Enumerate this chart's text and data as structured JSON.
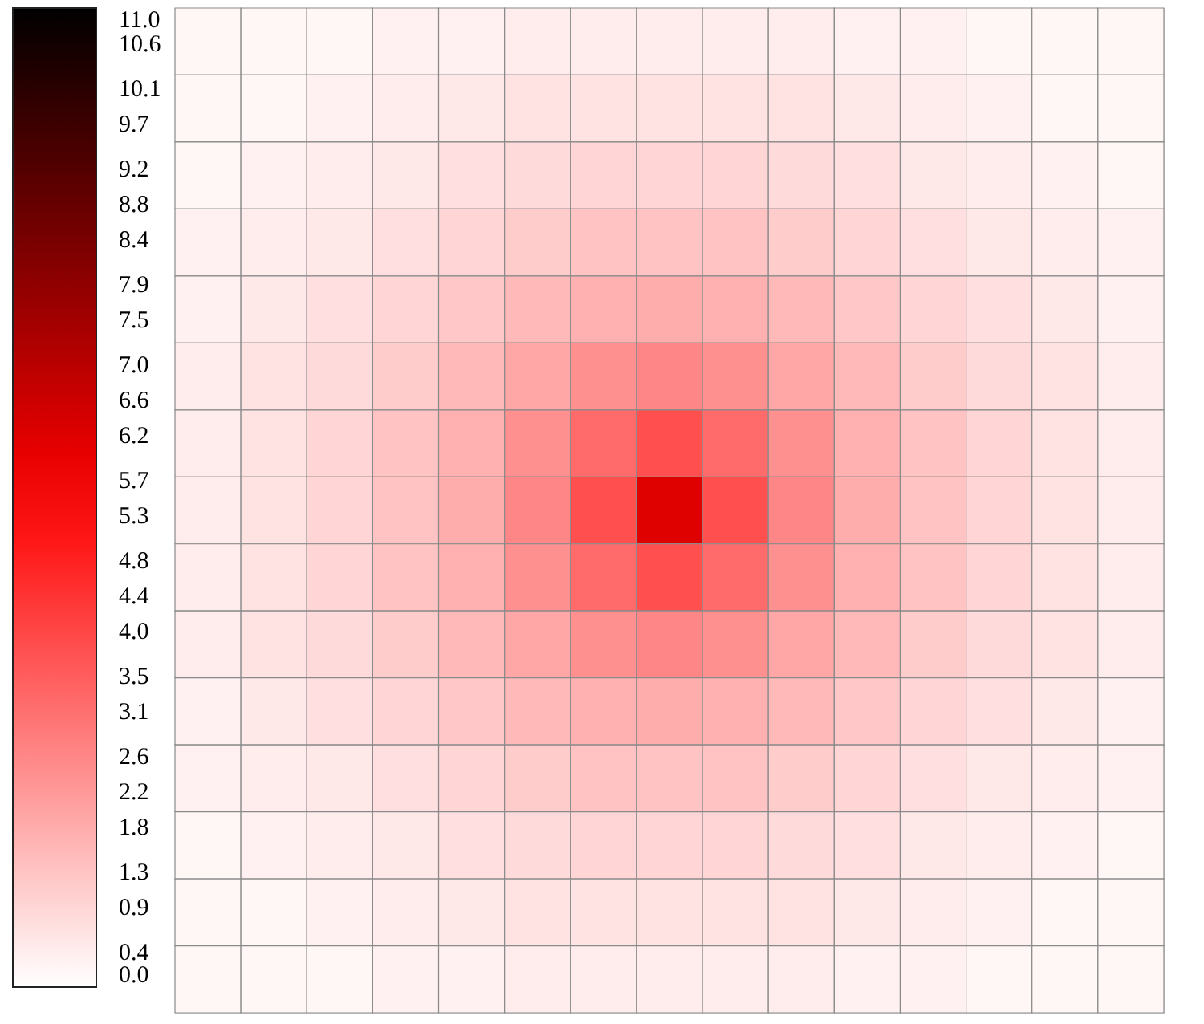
{
  "chart_data": {
    "type": "heatmap",
    "categories": [
      null,
      null,
      null,
      null,
      null,
      null,
      null,
      null,
      null,
      null,
      null,
      null,
      null,
      null,
      null
    ],
    "y_categories": [
      null,
      null,
      null,
      null,
      null,
      null,
      null,
      null,
      null,
      null,
      null,
      null,
      null,
      null,
      null
    ],
    "cells": [
      [
        0.2,
        0.2,
        0.2,
        0.3,
        0.3,
        0.4,
        0.4,
        0.4,
        0.4,
        0.4,
        0.3,
        0.3,
        0.2,
        0.2,
        0.2
      ],
      [
        0.2,
        0.2,
        0.3,
        0.4,
        0.5,
        0.6,
        0.6,
        0.6,
        0.6,
        0.6,
        0.5,
        0.4,
        0.3,
        0.2,
        0.2
      ],
      [
        0.2,
        0.3,
        0.4,
        0.5,
        0.7,
        0.8,
        0.9,
        0.9,
        0.9,
        0.8,
        0.7,
        0.5,
        0.4,
        0.3,
        0.2
      ],
      [
        0.3,
        0.4,
        0.5,
        0.7,
        0.9,
        1.1,
        1.3,
        1.3,
        1.3,
        1.1,
        0.9,
        0.7,
        0.5,
        0.4,
        0.3
      ],
      [
        0.3,
        0.5,
        0.7,
        0.9,
        1.2,
        1.5,
        1.7,
        1.8,
        1.7,
        1.5,
        1.2,
        0.9,
        0.7,
        0.5,
        0.3
      ],
      [
        0.4,
        0.6,
        0.8,
        1.1,
        1.5,
        1.9,
        2.4,
        2.6,
        2.4,
        1.9,
        1.5,
        1.1,
        0.8,
        0.6,
        0.4
      ],
      [
        0.4,
        0.6,
        0.9,
        1.3,
        1.7,
        2.4,
        3.2,
        3.8,
        3.2,
        2.4,
        1.7,
        1.3,
        0.9,
        0.6,
        0.4
      ],
      [
        0.4,
        0.6,
        0.9,
        1.3,
        1.8,
        2.6,
        3.8,
        6.2,
        3.8,
        2.6,
        1.8,
        1.3,
        0.9,
        0.6,
        0.4
      ],
      [
        0.4,
        0.6,
        0.9,
        1.3,
        1.7,
        2.4,
        3.2,
        3.8,
        3.2,
        2.4,
        1.7,
        1.3,
        0.9,
        0.6,
        0.4
      ],
      [
        0.4,
        0.6,
        0.8,
        1.1,
        1.5,
        1.9,
        2.4,
        2.6,
        2.4,
        1.9,
        1.5,
        1.1,
        0.8,
        0.6,
        0.4
      ],
      [
        0.3,
        0.5,
        0.7,
        0.9,
        1.2,
        1.5,
        1.7,
        1.8,
        1.7,
        1.5,
        1.2,
        0.9,
        0.7,
        0.5,
        0.3
      ],
      [
        0.3,
        0.4,
        0.5,
        0.7,
        0.9,
        1.1,
        1.3,
        1.3,
        1.3,
        1.1,
        0.9,
        0.7,
        0.5,
        0.4,
        0.3
      ],
      [
        0.2,
        0.3,
        0.4,
        0.5,
        0.7,
        0.8,
        0.9,
        0.9,
        0.9,
        0.8,
        0.7,
        0.5,
        0.4,
        0.3,
        0.2
      ],
      [
        0.2,
        0.2,
        0.3,
        0.4,
        0.5,
        0.6,
        0.6,
        0.6,
        0.6,
        0.6,
        0.5,
        0.4,
        0.3,
        0.2,
        0.2
      ],
      [
        0.2,
        0.2,
        0.2,
        0.3,
        0.3,
        0.4,
        0.4,
        0.4,
        0.4,
        0.4,
        0.3,
        0.3,
        0.2,
        0.2,
        0.2
      ]
    ],
    "clim": [
      0,
      11
    ],
    "cticks": [
      {
        "value": 0,
        "label": "0.0"
      },
      0.4,
      0.9,
      1.3,
      1.8,
      2.2,
      2.6,
      3.1,
      3.5,
      {
        "value": 4,
        "label": "4.0"
      },
      4.4,
      4.8,
      5.3,
      5.7,
      6.2,
      6.6,
      {
        "value": 7,
        "label": "7.0"
      },
      7.5,
      7.9,
      8.4,
      8.8,
      9.2,
      9.7,
      10.1,
      10.6,
      {
        "value": 11,
        "label": "11.0"
      }
    ]
  }
}
